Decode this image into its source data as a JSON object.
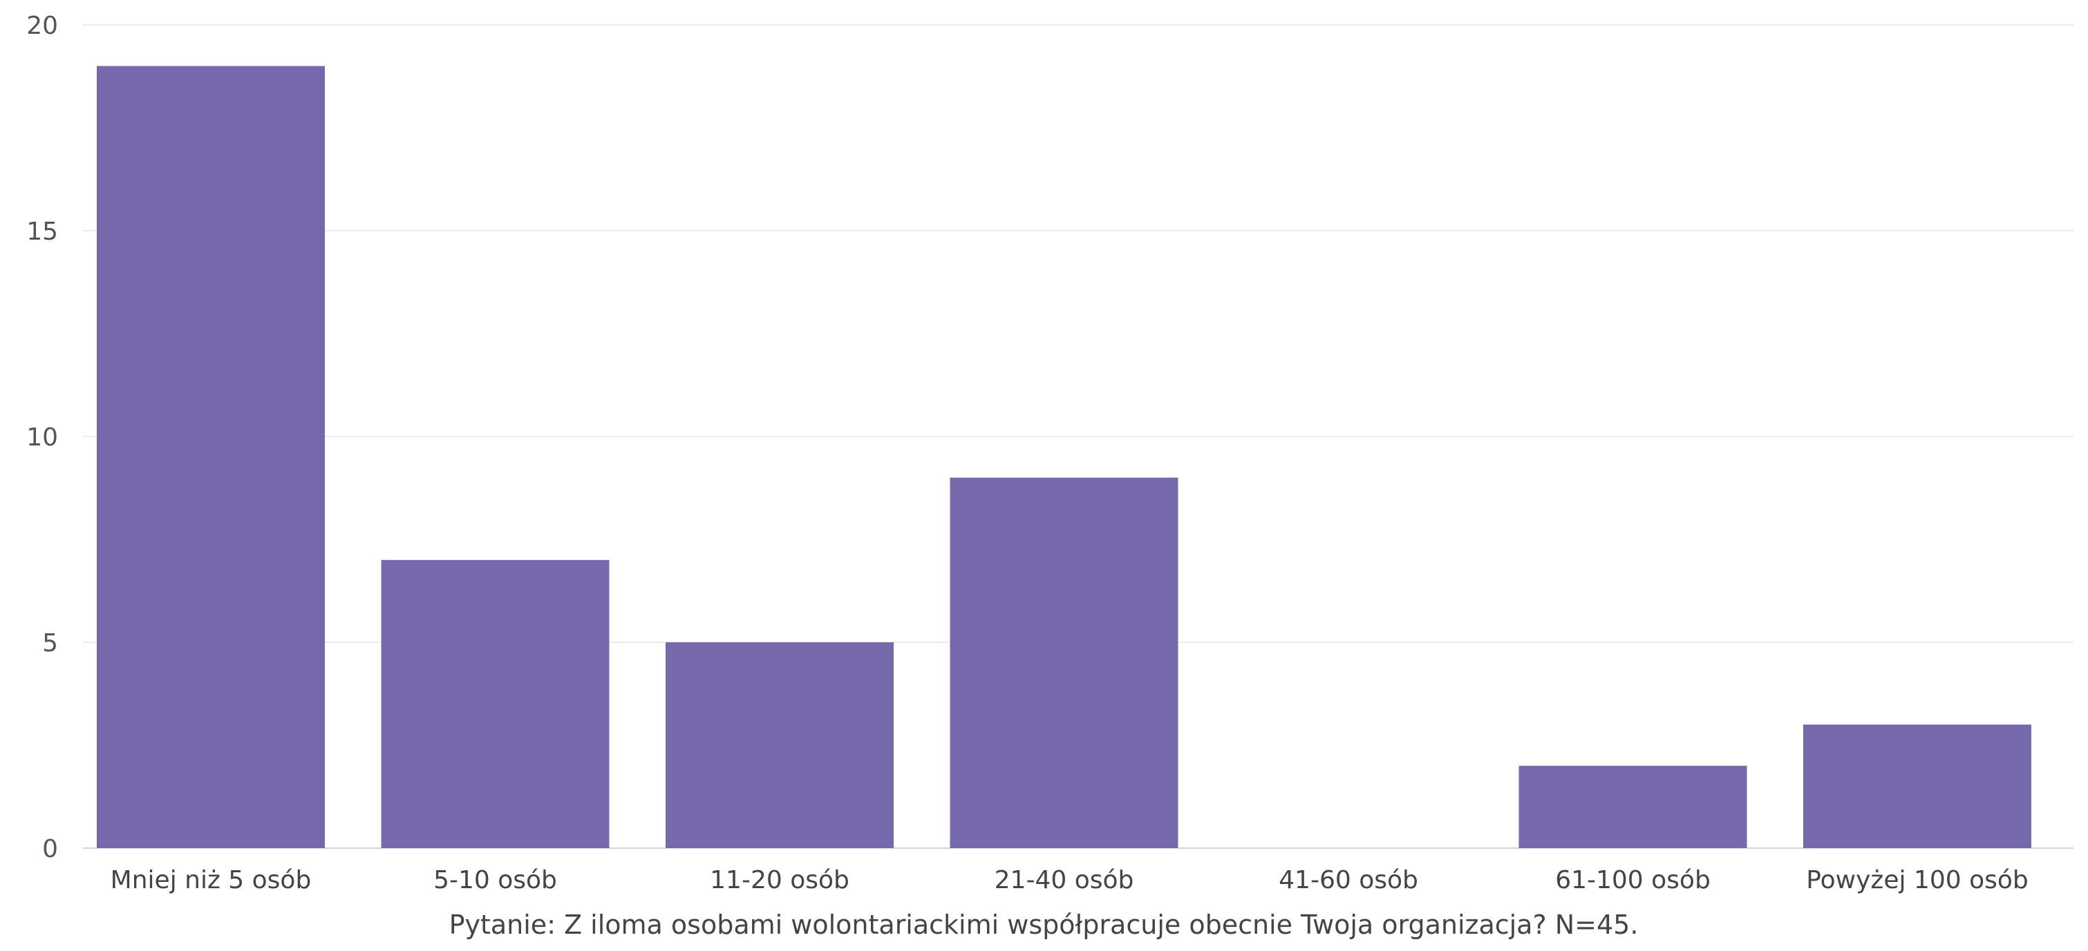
{
  "chart_data": {
    "type": "bar",
    "categories": [
      "Mniej niż 5 osób",
      "5-10 osób",
      "11-20 osób",
      "21-40 osób",
      "41-60 osób",
      "61-100 osób",
      "Powyżej 100 osób"
    ],
    "values": [
      19,
      7,
      5,
      9,
      0,
      2,
      3
    ],
    "y_ticks": [
      "0",
      "5",
      "10",
      "15",
      "20"
    ],
    "ylim": [
      0,
      20
    ],
    "grid": true,
    "legend": "none",
    "bar_color": "#7569ab",
    "caption": "Pytanie: Z iloma osobami wolontariackimi współpracuje obecnie Twoja organizacja? N=45."
  }
}
